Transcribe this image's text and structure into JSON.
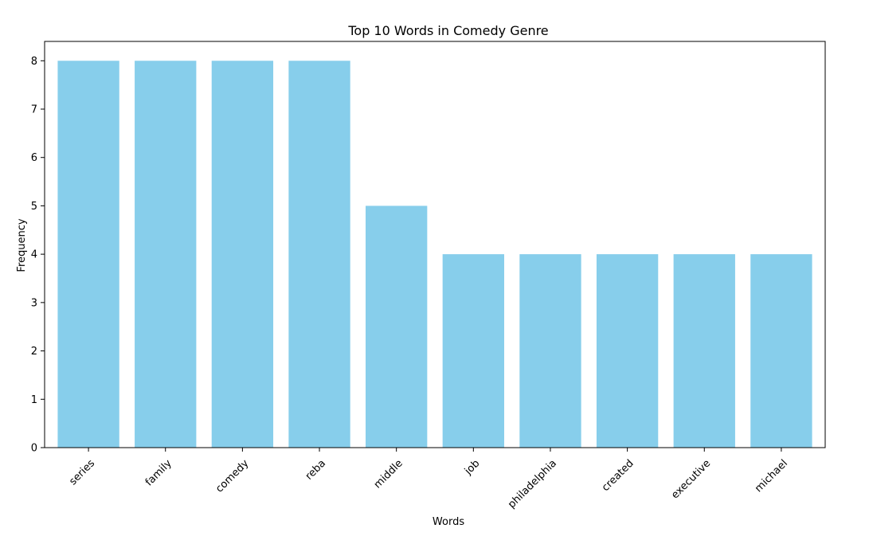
{
  "chart_data": {
    "type": "bar",
    "title": "Top 10 Words in Comedy Genre",
    "xlabel": "Words",
    "ylabel": "Frequency",
    "categories": [
      "series",
      "family",
      "comedy",
      "reba",
      "middle",
      "job",
      "philadelphia",
      "created",
      "executive",
      "michael"
    ],
    "values": [
      8,
      8,
      8,
      8,
      5,
      4,
      4,
      4,
      4,
      4
    ],
    "ylim": [
      0,
      8.4
    ],
    "yticks": [
      "0",
      "1",
      "2",
      "3",
      "4",
      "5",
      "6",
      "7",
      "8"
    ],
    "bar_color": "#87ceeb",
    "grid": false,
    "legend": "none"
  }
}
